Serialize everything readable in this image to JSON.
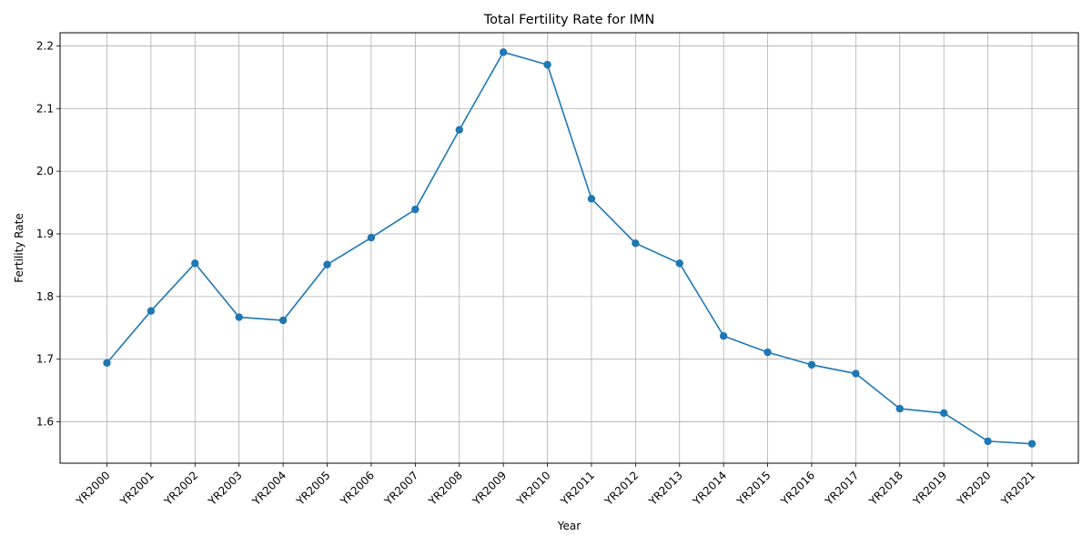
{
  "chart_data": {
    "type": "line",
    "title": "Total Fertility Rate for IMN",
    "xlabel": "Year",
    "ylabel": "Fertility Rate",
    "categories": [
      "YR2000",
      "YR2001",
      "YR2002",
      "YR2003",
      "YR2004",
      "YR2005",
      "YR2006",
      "YR2007",
      "YR2008",
      "YR2009",
      "YR2010",
      "YR2011",
      "YR2012",
      "YR2013",
      "YR2014",
      "YR2015",
      "YR2016",
      "YR2017",
      "YR2018",
      "YR2019",
      "YR2020",
      "YR2021"
    ],
    "series": [
      {
        "values": [
          1.694,
          1.777,
          1.853,
          1.767,
          1.762,
          1.851,
          1.894,
          1.939,
          2.066,
          2.19,
          2.17,
          1.956,
          1.885,
          1.853,
          1.737,
          1.711,
          1.691,
          1.677,
          1.621,
          1.614,
          1.569,
          1.565
        ],
        "color": "#1f77b4",
        "marker": "circle"
      }
    ],
    "yticks": [
      1.6,
      1.7,
      1.8,
      1.9,
      2.0,
      2.1,
      2.2
    ],
    "ylim": [
      1.534,
      2.221
    ],
    "grid": true,
    "legend": "none"
  }
}
